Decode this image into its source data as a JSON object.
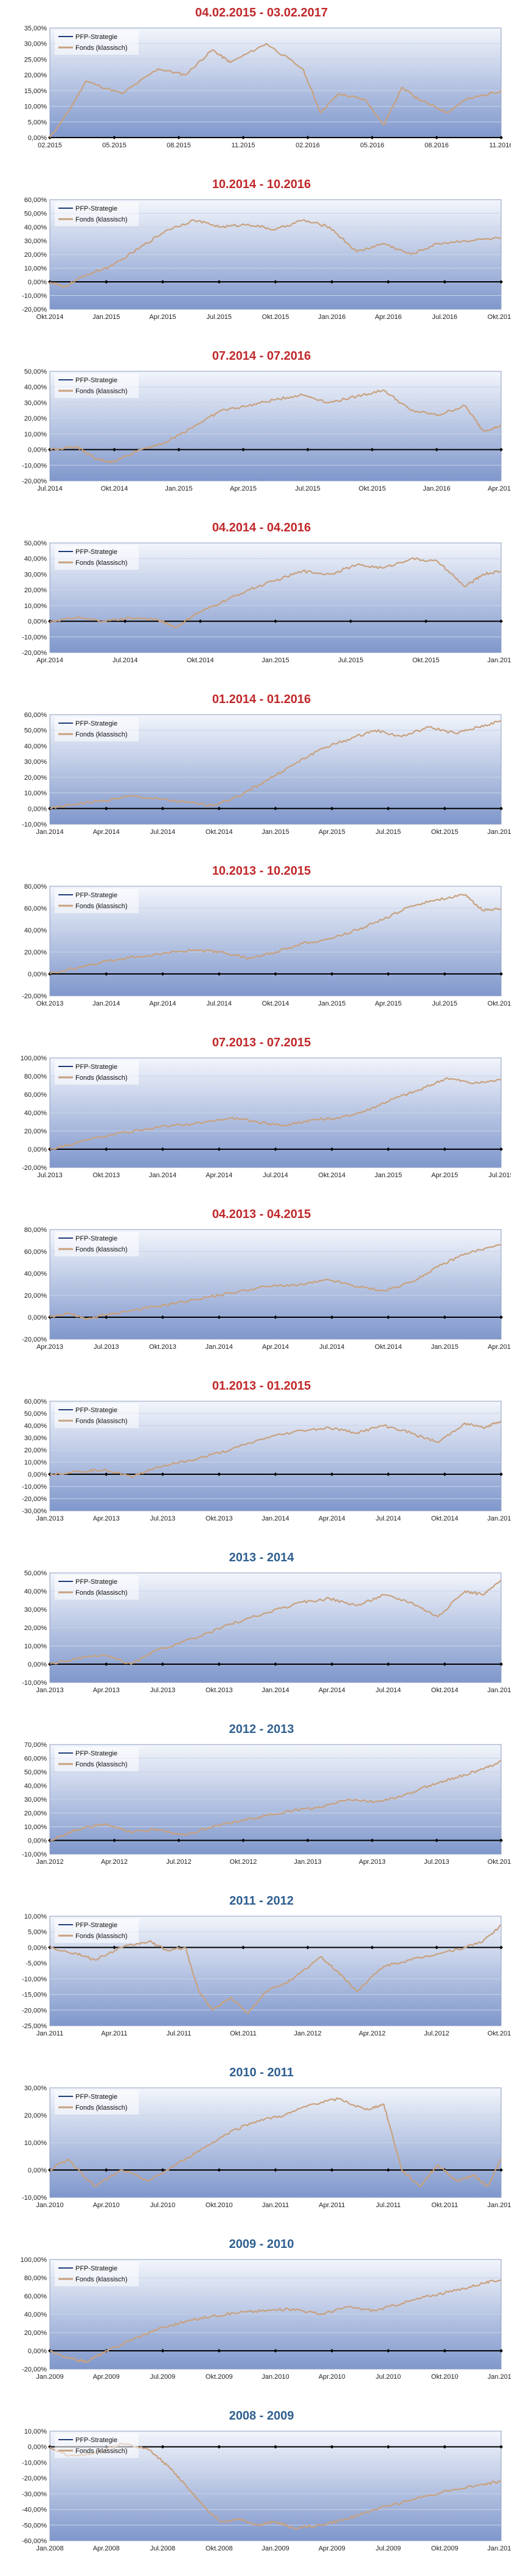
{
  "colors": {
    "title_red": "#c0282a",
    "title_blue": "#2f5f8f",
    "fonds_line": "#c8a17e",
    "strategy_line": "#1f3d7a",
    "zero_line": "#000000",
    "grid": "#c8d4e8",
    "plot_top": "#f2f5fb",
    "plot_bottom": "#7f97cc"
  },
  "legend": {
    "strategy": "PFP-Strategie",
    "fonds": "Fonds (klassisch)"
  },
  "chart_data": [
    {
      "type": "line",
      "title": "04.02.2015 - 03.02.2017",
      "title_color": "red",
      "ylim": [
        0,
        35
      ],
      "y_ticks": [
        "0,00%",
        "5,00%",
        "10,00%",
        "15,00%",
        "20,00%",
        "25,00%",
        "30,00%",
        "35,00%"
      ],
      "x_ticks": [
        "02.2015",
        "05.2015",
        "08.2015",
        "11.2015",
        "02.2016",
        "05.2016",
        "08.2016",
        "11.2016"
      ],
      "grid": true,
      "legend_position": "top-left",
      "series": [
        {
          "name": "Fonds (klassisch)",
          "x": [
            0,
            4,
            8,
            16,
            24,
            30,
            36,
            40,
            48,
            56,
            60,
            64,
            70,
            74,
            78,
            82,
            88,
            92,
            100
          ],
          "y": [
            0,
            8,
            18,
            14,
            22,
            20,
            28,
            24,
            30,
            22,
            8,
            14,
            12,
            4,
            16,
            12,
            8,
            12,
            15
          ]
        }
      ]
    },
    {
      "type": "line",
      "title": "10.2014 - 10.2016",
      "title_color": "red",
      "ylim": [
        -20,
        60
      ],
      "y_ticks": [
        "-20,00%",
        "-10,00%",
        "0,00%",
        "10,00%",
        "20,00%",
        "30,00%",
        "40,00%",
        "50,00%",
        "60,00%"
      ],
      "x_ticks": [
        "Okt.2014",
        "Jan.2015",
        "Apr.2015",
        "Jul.2015",
        "Okt.2015",
        "Jan.2016",
        "Apr.2016",
        "Jul.2016",
        "Okt.2016"
      ],
      "grid": true,
      "legend_position": "top-left",
      "series": [
        {
          "name": "Fonds (klassisch)",
          "x": [
            0,
            3,
            8,
            14,
            20,
            26,
            32,
            38,
            44,
            50,
            56,
            62,
            68,
            74,
            80,
            86,
            92,
            100
          ],
          "y": [
            0,
            -4,
            5,
            12,
            25,
            38,
            45,
            40,
            42,
            38,
            45,
            40,
            22,
            28,
            20,
            28,
            30,
            32
          ]
        }
      ]
    },
    {
      "type": "line",
      "title": "07.2014 - 07.2016",
      "title_color": "red",
      "ylim": [
        -20,
        50
      ],
      "y_ticks": [
        "-20,00%",
        "-10,00%",
        "0,00%",
        "10,00%",
        "20,00%",
        "30,00%",
        "40,00%",
        "50,00%"
      ],
      "x_ticks": [
        "Jul.2014",
        "Okt.2014",
        "Jan.2015",
        "Apr.2015",
        "Jul.2015",
        "Okt.2015",
        "Jan.2016",
        "Apr.2016"
      ],
      "grid": true,
      "legend_position": "top-left",
      "series": [
        {
          "name": "Fonds (klassisch)",
          "x": [
            0,
            6,
            10,
            14,
            20,
            26,
            32,
            38,
            44,
            50,
            56,
            62,
            68,
            74,
            80,
            86,
            92,
            96,
            100
          ],
          "y": [
            0,
            2,
            -6,
            -8,
            0,
            5,
            15,
            25,
            28,
            32,
            35,
            30,
            34,
            38,
            25,
            22,
            28,
            12,
            15
          ]
        }
      ]
    },
    {
      "type": "line",
      "title": "04.2014 - 04.2016",
      "title_color": "red",
      "ylim": [
        -20,
        50
      ],
      "y_ticks": [
        "-20,00%",
        "-10,00%",
        "0,00%",
        "10,00%",
        "20,00%",
        "30,00%",
        "40,00%",
        "50,00%"
      ],
      "x_ticks": [
        "Apr.2014",
        "Jul.2014",
        "Okt.2014",
        "Jan.2015",
        "Jul.2015",
        "Okt.2015",
        "Jan.2016"
      ],
      "grid": true,
      "legend_position": "top-left",
      "series": [
        {
          "name": "Fonds (klassisch)",
          "x": [
            0,
            6,
            12,
            18,
            24,
            28,
            32,
            38,
            44,
            50,
            56,
            62,
            68,
            74,
            80,
            86,
            92,
            96,
            100
          ],
          "y": [
            0,
            2,
            0,
            2,
            1,
            -4,
            4,
            12,
            20,
            26,
            32,
            30,
            36,
            34,
            40,
            38,
            22,
            30,
            32
          ]
        }
      ]
    },
    {
      "type": "line",
      "title": "01.2014 - 01.2016",
      "title_color": "red",
      "ylim": [
        -10,
        60
      ],
      "y_ticks": [
        "-10,00%",
        "0,00%",
        "10,00%",
        "20,00%",
        "30,00%",
        "40,00%",
        "50,00%",
        "60,00%"
      ],
      "x_ticks": [
        "Jan.2014",
        "Apr.2014",
        "Jul.2014",
        "Okt.2014",
        "Jan.2015",
        "Apr.2015",
        "Jul.2015",
        "Okt.2015",
        "Jan.2016"
      ],
      "grid": true,
      "legend_position": "top-left",
      "series": [
        {
          "name": "Fonds (klassisch)",
          "x": [
            0,
            6,
            12,
            18,
            24,
            30,
            36,
            42,
            48,
            54,
            60,
            66,
            72,
            78,
            84,
            90,
            95,
            100
          ],
          "y": [
            0,
            3,
            5,
            8,
            6,
            4,
            2,
            8,
            18,
            28,
            38,
            44,
            50,
            46,
            52,
            48,
            52,
            56
          ]
        }
      ]
    },
    {
      "type": "line",
      "title": "10.2013 - 10.2015",
      "title_color": "red",
      "ylim": [
        -20,
        80
      ],
      "y_ticks": [
        "-20,00%",
        "0,00%",
        "20,00%",
        "40,00%",
        "60,00%",
        "80,00%"
      ],
      "x_ticks": [
        "Okt.2013",
        "Jan.2014",
        "Apr.2014",
        "Jul.2014",
        "Okt.2014",
        "Jan.2015",
        "Apr.2015",
        "Jul.2015",
        "Okt.2015"
      ],
      "grid": true,
      "legend_position": "top-left",
      "series": [
        {
          "name": "Fonds (klassisch)",
          "x": [
            0,
            8,
            16,
            24,
            32,
            38,
            44,
            50,
            56,
            62,
            68,
            74,
            80,
            86,
            92,
            96,
            100
          ],
          "y": [
            0,
            8,
            14,
            18,
            22,
            20,
            14,
            20,
            28,
            32,
            40,
            50,
            62,
            68,
            72,
            58,
            60
          ]
        }
      ]
    },
    {
      "type": "line",
      "title": "07.2013 - 07.2015",
      "title_color": "red",
      "ylim": [
        -20,
        100
      ],
      "y_ticks": [
        "-20,00%",
        "0,00%",
        "20,00%",
        "40,00%",
        "60,00%",
        "80,00%",
        "100,00%"
      ],
      "x_ticks": [
        "Jul.2013",
        "Okt.2013",
        "Jan.2014",
        "Apr.2014",
        "Jul.2014",
        "Okt.2014",
        "Jan.2015",
        "Apr.2015",
        "Jul.2015"
      ],
      "grid": true,
      "legend_position": "top-left",
      "series": [
        {
          "name": "Fonds (klassisch)",
          "x": [
            0,
            8,
            16,
            24,
            32,
            40,
            46,
            52,
            58,
            64,
            70,
            76,
            82,
            88,
            94,
            100
          ],
          "y": [
            0,
            10,
            18,
            24,
            28,
            34,
            30,
            26,
            32,
            34,
            42,
            55,
            65,
            78,
            72,
            76
          ]
        }
      ]
    },
    {
      "type": "line",
      "title": "04.2013 - 04.2015",
      "title_color": "red",
      "ylim": [
        -20,
        80
      ],
      "y_ticks": [
        "-20,00%",
        "0,00%",
        "20,00%",
        "40,00%",
        "60,00%",
        "80,00%"
      ],
      "x_ticks": [
        "Apr.2013",
        "Jul.2013",
        "Okt.2013",
        "Jan.2014",
        "Apr.2014",
        "Jul.2014",
        "Okt.2014",
        "Jan.2015",
        "Apr.2015"
      ],
      "grid": true,
      "legend_position": "top-left",
      "series": [
        {
          "name": "Fonds (klassisch)",
          "x": [
            0,
            4,
            8,
            12,
            18,
            24,
            32,
            40,
            48,
            56,
            62,
            68,
            74,
            80,
            86,
            92,
            100
          ],
          "y": [
            0,
            4,
            -2,
            2,
            6,
            10,
            16,
            22,
            28,
            30,
            34,
            28,
            24,
            32,
            46,
            58,
            66
          ]
        }
      ]
    },
    {
      "type": "line",
      "title": "01.2013 - 01.2015",
      "title_color": "red",
      "ylim": [
        -30,
        60
      ],
      "y_ticks": [
        "-30,00%",
        "-20,00%",
        "-10,00%",
        "0,00%",
        "10,00%",
        "20,00%",
        "30,00%",
        "40,00%",
        "50,00%",
        "60,00%"
      ],
      "x_ticks": [
        "Jan.2013",
        "Apr.2013",
        "Jul.2013",
        "Okt.2013",
        "Jan.2014",
        "Apr.2014",
        "Jul.2014",
        "Okt.2014",
        "Jan.2015"
      ],
      "grid": true,
      "legend_position": "top-left",
      "series": [
        {
          "name": "Fonds (klassisch)",
          "x": [
            0,
            6,
            12,
            18,
            24,
            32,
            40,
            48,
            56,
            62,
            68,
            74,
            80,
            86,
            92,
            96,
            100
          ],
          "y": [
            0,
            2,
            4,
            -2,
            6,
            12,
            20,
            30,
            36,
            38,
            34,
            40,
            34,
            26,
            42,
            38,
            44
          ]
        }
      ]
    },
    {
      "type": "line",
      "title": "2013 - 2014",
      "title_color": "blue",
      "ylim": [
        -10,
        50
      ],
      "y_ticks": [
        "-10,00%",
        "0,00%",
        "10,00%",
        "20,00%",
        "30,00%",
        "40,00%",
        "50,00%"
      ],
      "x_ticks": [
        "Jan.2013",
        "Apr.2013",
        "Jul.2013",
        "Okt.2013",
        "Jan.2014",
        "Apr.2014",
        "Jul.2014",
        "Okt.2014",
        "Jan.2015"
      ],
      "grid": true,
      "legend_position": "top-left",
      "series": [
        {
          "name": "Fonds (klassisch)",
          "x": [
            0,
            6,
            12,
            18,
            24,
            32,
            40,
            48,
            56,
            62,
            68,
            74,
            80,
            86,
            92,
            96,
            100
          ],
          "y": [
            0,
            3,
            5,
            0,
            8,
            14,
            22,
            28,
            34,
            36,
            32,
            38,
            34,
            26,
            40,
            38,
            46
          ]
        }
      ]
    },
    {
      "type": "line",
      "title": "2012 - 2013",
      "title_color": "blue",
      "ylim": [
        -10,
        70
      ],
      "y_ticks": [
        "-10,00%",
        "0,00%",
        "10,00%",
        "20,00%",
        "30,00%",
        "40,00%",
        "50,00%",
        "60,00%",
        "70,00%"
      ],
      "x_ticks": [
        "Jan.2012",
        "Apr.2012",
        "Jul.2012",
        "Okt.2012",
        "Jan.2013",
        "Apr.2013",
        "Jul.2013",
        "Okt.2013"
      ],
      "grid": true,
      "legend_position": "top-left",
      "series": [
        {
          "name": "Fonds (klassisch)",
          "x": [
            0,
            6,
            12,
            18,
            24,
            30,
            36,
            42,
            48,
            54,
            60,
            66,
            72,
            78,
            84,
            90,
            96,
            100
          ],
          "y": [
            0,
            8,
            12,
            6,
            8,
            4,
            10,
            14,
            18,
            22,
            24,
            30,
            28,
            32,
            40,
            46,
            52,
            58
          ]
        }
      ]
    },
    {
      "type": "line",
      "title": "2011 - 2012",
      "title_color": "blue",
      "ylim": [
        -25,
        10
      ],
      "y_ticks": [
        "-25,00%",
        "-20,00%",
        "-15,00%",
        "-10,00%",
        "-5,00%",
        "0,00%",
        "5,00%",
        "10,00%"
      ],
      "x_ticks": [
        "Jan.2011",
        "Apr.2011",
        "Jul.2011",
        "Okt.2011",
        "Jan.2012",
        "Apr.2012",
        "Jul.2012",
        "Okt.2012"
      ],
      "grid": true,
      "legend_position": "top-left",
      "series": [
        {
          "name": "Fonds (klassisch)",
          "x": [
            0,
            6,
            10,
            16,
            22,
            26,
            30,
            33,
            36,
            40,
            44,
            48,
            54,
            60,
            64,
            68,
            74,
            80,
            86,
            92,
            96,
            100
          ],
          "y": [
            0,
            -2,
            -4,
            0,
            2,
            -1,
            0,
            -14,
            -20,
            -16,
            -21,
            -14,
            -10,
            -3,
            -8,
            -14,
            -6,
            -4,
            -2,
            0,
            2,
            7
          ]
        }
      ]
    },
    {
      "type": "line",
      "title": "2010 - 2011",
      "title_color": "blue",
      "ylim": [
        -10,
        30
      ],
      "y_ticks": [
        "-10,00%",
        "0,00%",
        "10,00%",
        "20,00%",
        "30,00%"
      ],
      "x_ticks": [
        "Jan.2010",
        "Apr.2010",
        "Jul.2010",
        "Okt.2010",
        "Jan.2011",
        "Apr.2011",
        "Jul.2011",
        "Okt.2011",
        "Jan.2012"
      ],
      "grid": true,
      "legend_position": "top-left",
      "series": [
        {
          "name": "Fonds (klassisch)",
          "x": [
            0,
            4,
            10,
            16,
            22,
            28,
            34,
            40,
            46,
            52,
            58,
            64,
            70,
            74,
            78,
            82,
            86,
            90,
            94,
            97,
            100
          ],
          "y": [
            0,
            4,
            -6,
            0,
            -4,
            2,
            8,
            14,
            18,
            20,
            24,
            26,
            22,
            24,
            0,
            -6,
            2,
            -4,
            -2,
            -6,
            4
          ]
        }
      ]
    },
    {
      "type": "line",
      "title": "2009 - 2010",
      "title_color": "blue",
      "ylim": [
        -20,
        100
      ],
      "y_ticks": [
        "-20,00%",
        "0,00%",
        "20,00%",
        "40,00%",
        "60,00%",
        "80,00%",
        "100,00%"
      ],
      "x_ticks": [
        "Jan.2009",
        "Apr.2009",
        "Jul.2009",
        "Okt.2009",
        "Jan.2010",
        "Apr.2010",
        "Jul.2010",
        "Okt.2010",
        "Jan.2011"
      ],
      "grid": true,
      "legend_position": "top-left",
      "series": [
        {
          "name": "Fonds (klassisch)",
          "x": [
            0,
            4,
            8,
            12,
            18,
            24,
            30,
            36,
            42,
            48,
            54,
            60,
            66,
            72,
            78,
            84,
            90,
            96,
            100
          ],
          "y": [
            0,
            -8,
            -12,
            -2,
            12,
            24,
            32,
            38,
            42,
            44,
            46,
            40,
            48,
            44,
            52,
            60,
            66,
            74,
            78
          ]
        }
      ]
    },
    {
      "type": "line",
      "title": "2008 - 2009",
      "title_color": "blue",
      "ylim": [
        -60,
        10
      ],
      "y_ticks": [
        "-60,00%",
        "-50,00%",
        "-40,00%",
        "-30,00%",
        "-20,00%",
        "-10,00%",
        "0,00%",
        "10,00%"
      ],
      "x_ticks": [
        "Jan.2008",
        "Apr.2008",
        "Jul.2008",
        "Okt.2008",
        "Jan.2009",
        "Apr.2009",
        "Jul.2009",
        "Okt.2009",
        "Jan.2010"
      ],
      "grid": true,
      "legend_position": "top-left",
      "series": [
        {
          "name": "Fonds (klassisch)",
          "x": [
            0,
            4,
            10,
            16,
            22,
            26,
            30,
            34,
            38,
            42,
            46,
            50,
            54,
            60,
            66,
            72,
            80,
            88,
            96,
            100
          ],
          "y": [
            0,
            -6,
            -4,
            2,
            -2,
            -12,
            -24,
            -38,
            -48,
            -46,
            -50,
            -48,
            -52,
            -50,
            -46,
            -40,
            -34,
            -28,
            -24,
            -22
          ]
        }
      ]
    }
  ]
}
